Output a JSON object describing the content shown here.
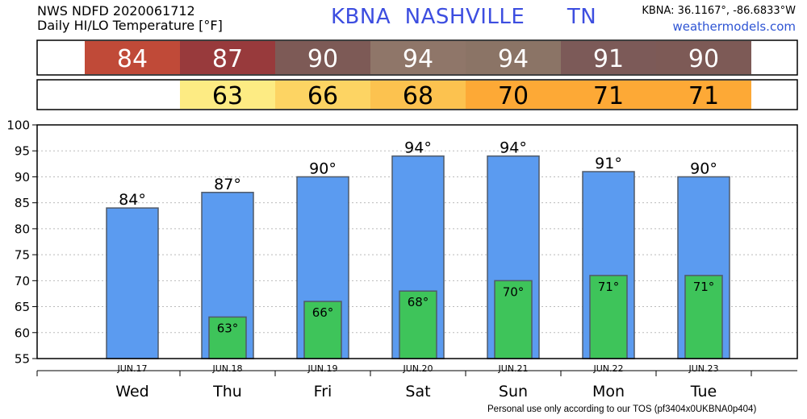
{
  "header": {
    "line1": "NWS NDFD 2020061712",
    "line2": "Daily HI/LO Temperature [°F]",
    "station_title": "KBNA  NASHVILLE      TN",
    "coords": "KBNA: 36.1167°, -86.6833°W",
    "website": "weathermodels.com"
  },
  "footer": "Personal use only according to our TOS (pf3404x0UKBNA0p404)",
  "colors": {
    "hi_bar": "#5b9bf0",
    "lo_bar": "#3ec45a",
    "hi_strip": [
      "#c04a38",
      "#983a3c",
      "#7d5a56",
      "#8f7669",
      "#8b7466",
      "#7c5a58",
      "#7d5a56"
    ],
    "lo_strip": [
      null,
      "#fdeb83",
      "#fdd463",
      "#fcc24f",
      "#fda936",
      "#fda936",
      "#fda936"
    ]
  },
  "chart_data": {
    "type": "bar",
    "title": "Daily HI/LO Temperature [°F]",
    "categories": [
      "Wed",
      "Thu",
      "Fri",
      "Sat",
      "Sun",
      "Mon",
      "Tue"
    ],
    "dates": [
      "JUN.17",
      "JUN.18",
      "JUN.19",
      "JUN.20",
      "JUN.21",
      "JUN.22",
      "JUN.23"
    ],
    "series": [
      {
        "name": "HI",
        "values": [
          84,
          87,
          90,
          94,
          94,
          91,
          90
        ]
      },
      {
        "name": "LO",
        "values": [
          null,
          63,
          66,
          68,
          70,
          71,
          71
        ]
      }
    ],
    "hi_labels": [
      "84°",
      "87°",
      "90°",
      "94°",
      "94°",
      "91°",
      "90°"
    ],
    "lo_labels": [
      null,
      "63°",
      "66°",
      "68°",
      "70°",
      "71°",
      "71°"
    ],
    "hi_strip_labels": [
      "84",
      "87",
      "90",
      "94",
      "94",
      "91",
      "90"
    ],
    "lo_strip_labels": [
      null,
      "63",
      "66",
      "68",
      "70",
      "71",
      "71"
    ],
    "ylim": [
      55,
      100
    ],
    "yticks": [
      "55",
      "60",
      "65",
      "70",
      "75",
      "80",
      "85",
      "90",
      "95",
      "100"
    ],
    "grid": true,
    "legend": "none"
  }
}
